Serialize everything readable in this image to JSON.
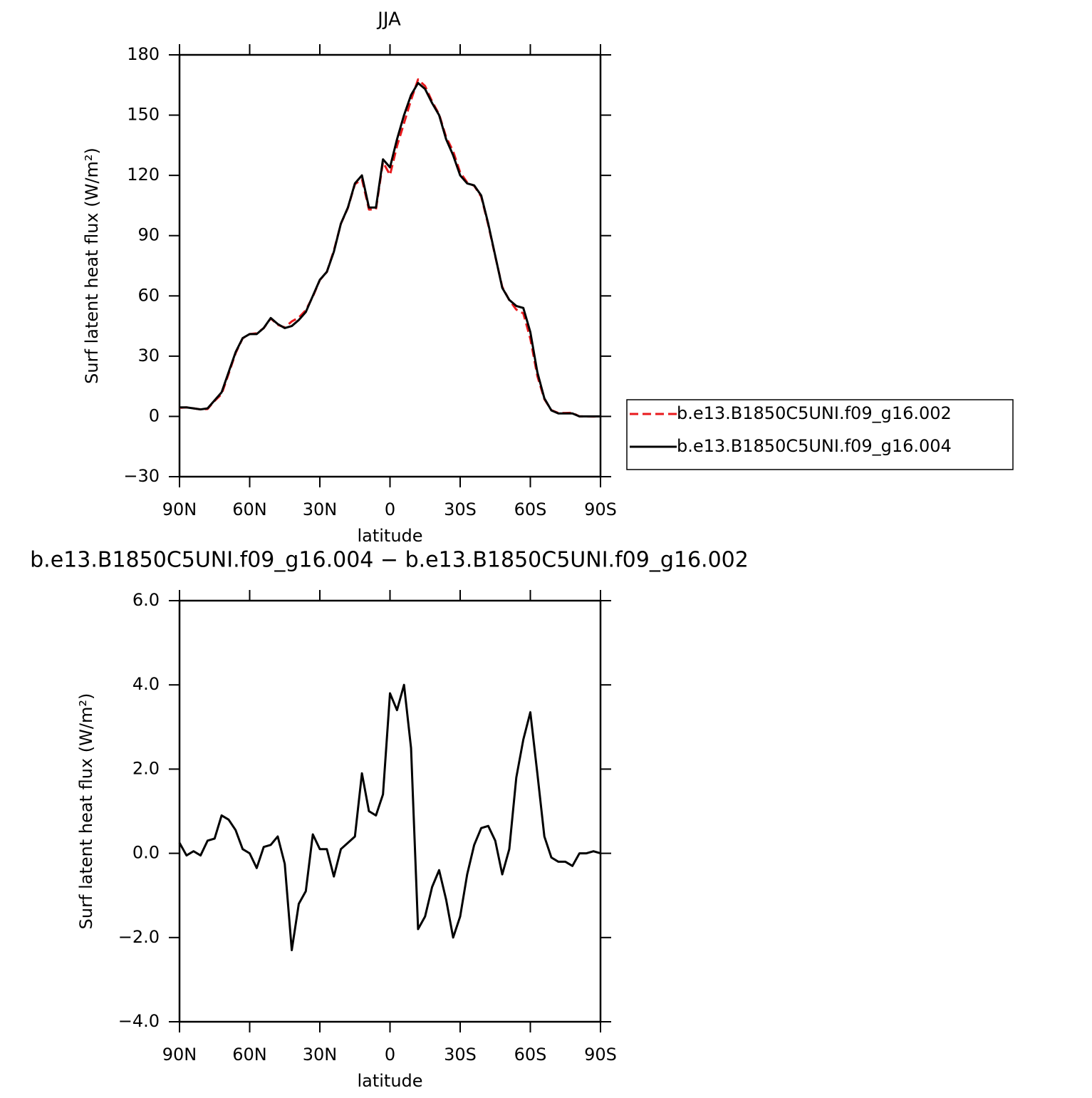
{
  "chart_data": [
    {
      "type": "line",
      "title": "JJA",
      "xlabel": "latitude",
      "ylabel": "Surf latent heat flux (W/m²)",
      "x": [
        90,
        87,
        84,
        81,
        78,
        75,
        72,
        69,
        66,
        63,
        60,
        57,
        54,
        51,
        48,
        45,
        42,
        39,
        36,
        33,
        30,
        27,
        24,
        21,
        18,
        15,
        12,
        9,
        6,
        3,
        0,
        -3,
        -6,
        -9,
        -12,
        -15,
        -18,
        -21,
        -24,
        -27,
        -30,
        -33,
        -36,
        -39,
        -42,
        -45,
        -48,
        -51,
        -54,
        -57,
        -60,
        -63,
        -66,
        -69,
        -72,
        -75,
        -78,
        -81,
        -84,
        -87,
        -90
      ],
      "series": [
        {
          "name": "b.e13.B1850C5UNI.f09_g16.002",
          "color": "#e8191c",
          "dash": true,
          "values": [
            4.3,
            4.5,
            4,
            3.5,
            3.7,
            7.7,
            11.1,
            21.2,
            31.5,
            38.9,
            41,
            41.4,
            43.9,
            48.8,
            45.6,
            44.3,
            47.3,
            49.2,
            52.9,
            59.6,
            67.9,
            71.9,
            82.6,
            95.9,
            103.8,
            115.6,
            118.1,
            103,
            103.1,
            126.6,
            120.2,
            134.6,
            146,
            157.5,
            167.8,
            164.5,
            156.8,
            150.4,
            139.1,
            132,
            121.5,
            116.5,
            114.8,
            109.4,
            95.4,
            79.7,
            64.5,
            57.9,
            53.2,
            51.3,
            38.7,
            20.1,
            8.6,
            3.1,
            1.7,
            1.7,
            1.8,
            0,
            0,
            -0.05,
            0
          ]
        },
        {
          "name": "b.e13.B1850C5UNI.f09_g16.004",
          "color": "#000000",
          "dash": false,
          "values": [
            4.5,
            4.5,
            4,
            3.5,
            4,
            8,
            12,
            22,
            32,
            39,
            41,
            41,
            44,
            49,
            46,
            44,
            45,
            48,
            52,
            60,
            68,
            72,
            82,
            96,
            104,
            116,
            120,
            104,
            104,
            128,
            124,
            138,
            150,
            160,
            166,
            163,
            156,
            150,
            138,
            130,
            120,
            116,
            115,
            110,
            96,
            80,
            64,
            58,
            55,
            54,
            42,
            22,
            9,
            3,
            1.5,
            1.5,
            1.5,
            0,
            0,
            0,
            0
          ]
        }
      ],
      "xlim": [
        90,
        -90
      ],
      "xticks": [
        {
          "value": 90,
          "label": "90N"
        },
        {
          "value": 60,
          "label": "60N"
        },
        {
          "value": 30,
          "label": "30N"
        },
        0,
        {
          "value": -30,
          "label": "30S"
        },
        {
          "value": -60,
          "label": "60S"
        },
        {
          "value": -90,
          "label": "90S"
        }
      ],
      "ylim": [
        -30,
        180
      ],
      "yticks": [
        {
          "value": -30,
          "label": "−30"
        },
        0,
        30,
        60,
        90,
        120,
        150,
        180
      ],
      "legend": true
    },
    {
      "type": "line",
      "title": "b.e13.B1850C5UNI.f09_g16.004 − b.e13.B1850C5UNI.f09_g16.002",
      "xlabel": "latitude",
      "ylabel": "Surf latent heat flux (W/m²)",
      "x": [
        90,
        87,
        84,
        81,
        78,
        75,
        72,
        69,
        66,
        63,
        60,
        57,
        54,
        51,
        48,
        45,
        42,
        39,
        36,
        33,
        30,
        27,
        24,
        21,
        18,
        15,
        12,
        9,
        6,
        3,
        0,
        -3,
        -6,
        -9,
        -12,
        -15,
        -18,
        -21,
        -24,
        -27,
        -30,
        -33,
        -36,
        -39,
        -42,
        -45,
        -48,
        -51,
        -54,
        -57,
        -60,
        -63,
        -66,
        -69,
        -72,
        -75,
        -78,
        -81,
        -84,
        -87,
        -90
      ],
      "series": [
        {
          "color": "#000000",
          "dash": false,
          "values": [
            0.25,
            -0.05,
            0.05,
            -0.05,
            0.3,
            0.35,
            0.9,
            0.8,
            0.55,
            0.1,
            0,
            -0.35,
            0.15,
            0.2,
            0.4,
            -0.25,
            -2.3,
            -1.2,
            -0.9,
            0.45,
            0.1,
            0.1,
            -0.55,
            0.1,
            0.25,
            0.4,
            1.9,
            1,
            0.9,
            1.4,
            3.8,
            3.4,
            4,
            2.5,
            -1.8,
            -1.5,
            -0.8,
            -0.4,
            -1.1,
            -2,
            -1.5,
            -0.5,
            0.2,
            0.6,
            0.65,
            0.3,
            -0.5,
            0.1,
            1.8,
            2.7,
            3.35,
            1.9,
            0.4,
            -0.1,
            -0.2,
            -0.2,
            -0.3,
            0,
            0,
            0.05,
            0
          ]
        }
      ],
      "xlim": [
        90,
        -90
      ],
      "xticks": [
        {
          "value": 90,
          "label": "90N"
        },
        {
          "value": 60,
          "label": "60N"
        },
        {
          "value": 30,
          "label": "30N"
        },
        0,
        {
          "value": -30,
          "label": "30S"
        },
        {
          "value": -60,
          "label": "60S"
        },
        {
          "value": -90,
          "label": "90S"
        }
      ],
      "ylim": [
        -4,
        6
      ],
      "yticks": [
        {
          "value": -4,
          "label": "−4.0"
        },
        {
          "value": -2,
          "label": "−2.0"
        },
        {
          "value": 0,
          "label": "0.0"
        },
        {
          "value": 2,
          "label": "2.0"
        },
        {
          "value": 4,
          "label": "4.0"
        },
        {
          "value": 6,
          "label": "6.0"
        }
      ],
      "legend": false
    }
  ]
}
